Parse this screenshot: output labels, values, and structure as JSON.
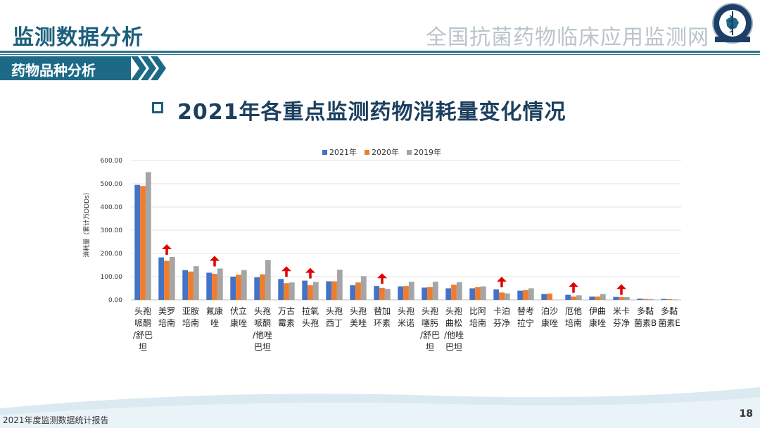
{
  "header": {
    "section_title": "监测数据分析",
    "org_name": "全国抗菌药物临床应用监测网",
    "subsection": "药物品种分析",
    "slide_title": "2021年各重点监测药物消耗量变化情况"
  },
  "footer": {
    "report": "2021年度监测数据统计报告",
    "page": "18"
  },
  "colors": {
    "2021": "#4472c4",
    "2020": "#ed7d31",
    "2019": "#a5a5a5",
    "arrow": "#e00000",
    "brand": "#1d6a87"
  },
  "chart_data": {
    "type": "bar",
    "ylabel": "消耗量（累计万DDDs）",
    "ylim": [
      0,
      600
    ],
    "yticks": [
      "0.00",
      "100.00",
      "200.00",
      "300.00",
      "400.00",
      "500.00",
      "600.00"
    ],
    "grid": true,
    "legend_position": "top",
    "categories": [
      [
        "头孢",
        "哌酮",
        "/舒巴",
        "坦"
      ],
      [
        "美罗",
        "培南"
      ],
      [
        "亚胺",
        "培南"
      ],
      [
        "氟康",
        "唑"
      ],
      [
        "伏立",
        "康唑"
      ],
      [
        "头孢",
        "哌酮",
        "/他唑",
        "巴坦"
      ],
      [
        "万古",
        "霉素"
      ],
      [
        "拉氧",
        "头孢"
      ],
      [
        "头孢",
        "西丁"
      ],
      [
        "头孢",
        "美唑"
      ],
      [
        "替加",
        "环素"
      ],
      [
        "头孢",
        "米诺"
      ],
      [
        "头孢",
        "噻肟",
        "/舒巴",
        "坦"
      ],
      [
        "头孢",
        "曲松",
        "/他唑",
        "巴坦"
      ],
      [
        "比阿",
        "培南"
      ],
      [
        "卡泊",
        "芬净"
      ],
      [
        "替考",
        "拉宁"
      ],
      [
        "泊沙",
        "康唑"
      ],
      [
        "厄他",
        "培南"
      ],
      [
        "伊曲",
        "康唑"
      ],
      [
        "米卡",
        "芬净"
      ],
      [
        "多黏",
        "菌素B"
      ],
      [
        "多黏",
        "菌素E"
      ]
    ],
    "series": [
      {
        "name": "2021年",
        "values": [
          495,
          183,
          128,
          117,
          100,
          97,
          90,
          83,
          80,
          63,
          60,
          58,
          53,
          50,
          50,
          45,
          40,
          25,
          22,
          14,
          13,
          5,
          4
        ]
      },
      {
        "name": "2020年",
        "values": [
          490,
          168,
          122,
          112,
          108,
          110,
          72,
          63,
          80,
          75,
          52,
          60,
          55,
          65,
          55,
          32,
          42,
          27,
          14,
          14,
          12,
          4,
          3
        ]
      },
      {
        "name": "2019年",
        "values": [
          550,
          185,
          145,
          135,
          128,
          172,
          75,
          77,
          130,
          102,
          47,
          78,
          78,
          76,
          58,
          28,
          50,
          0,
          20,
          25,
          12,
          3,
          2
        ]
      }
    ],
    "increase_arrows": [
      1,
      3,
      6,
      7,
      10,
      15,
      18,
      20
    ]
  }
}
